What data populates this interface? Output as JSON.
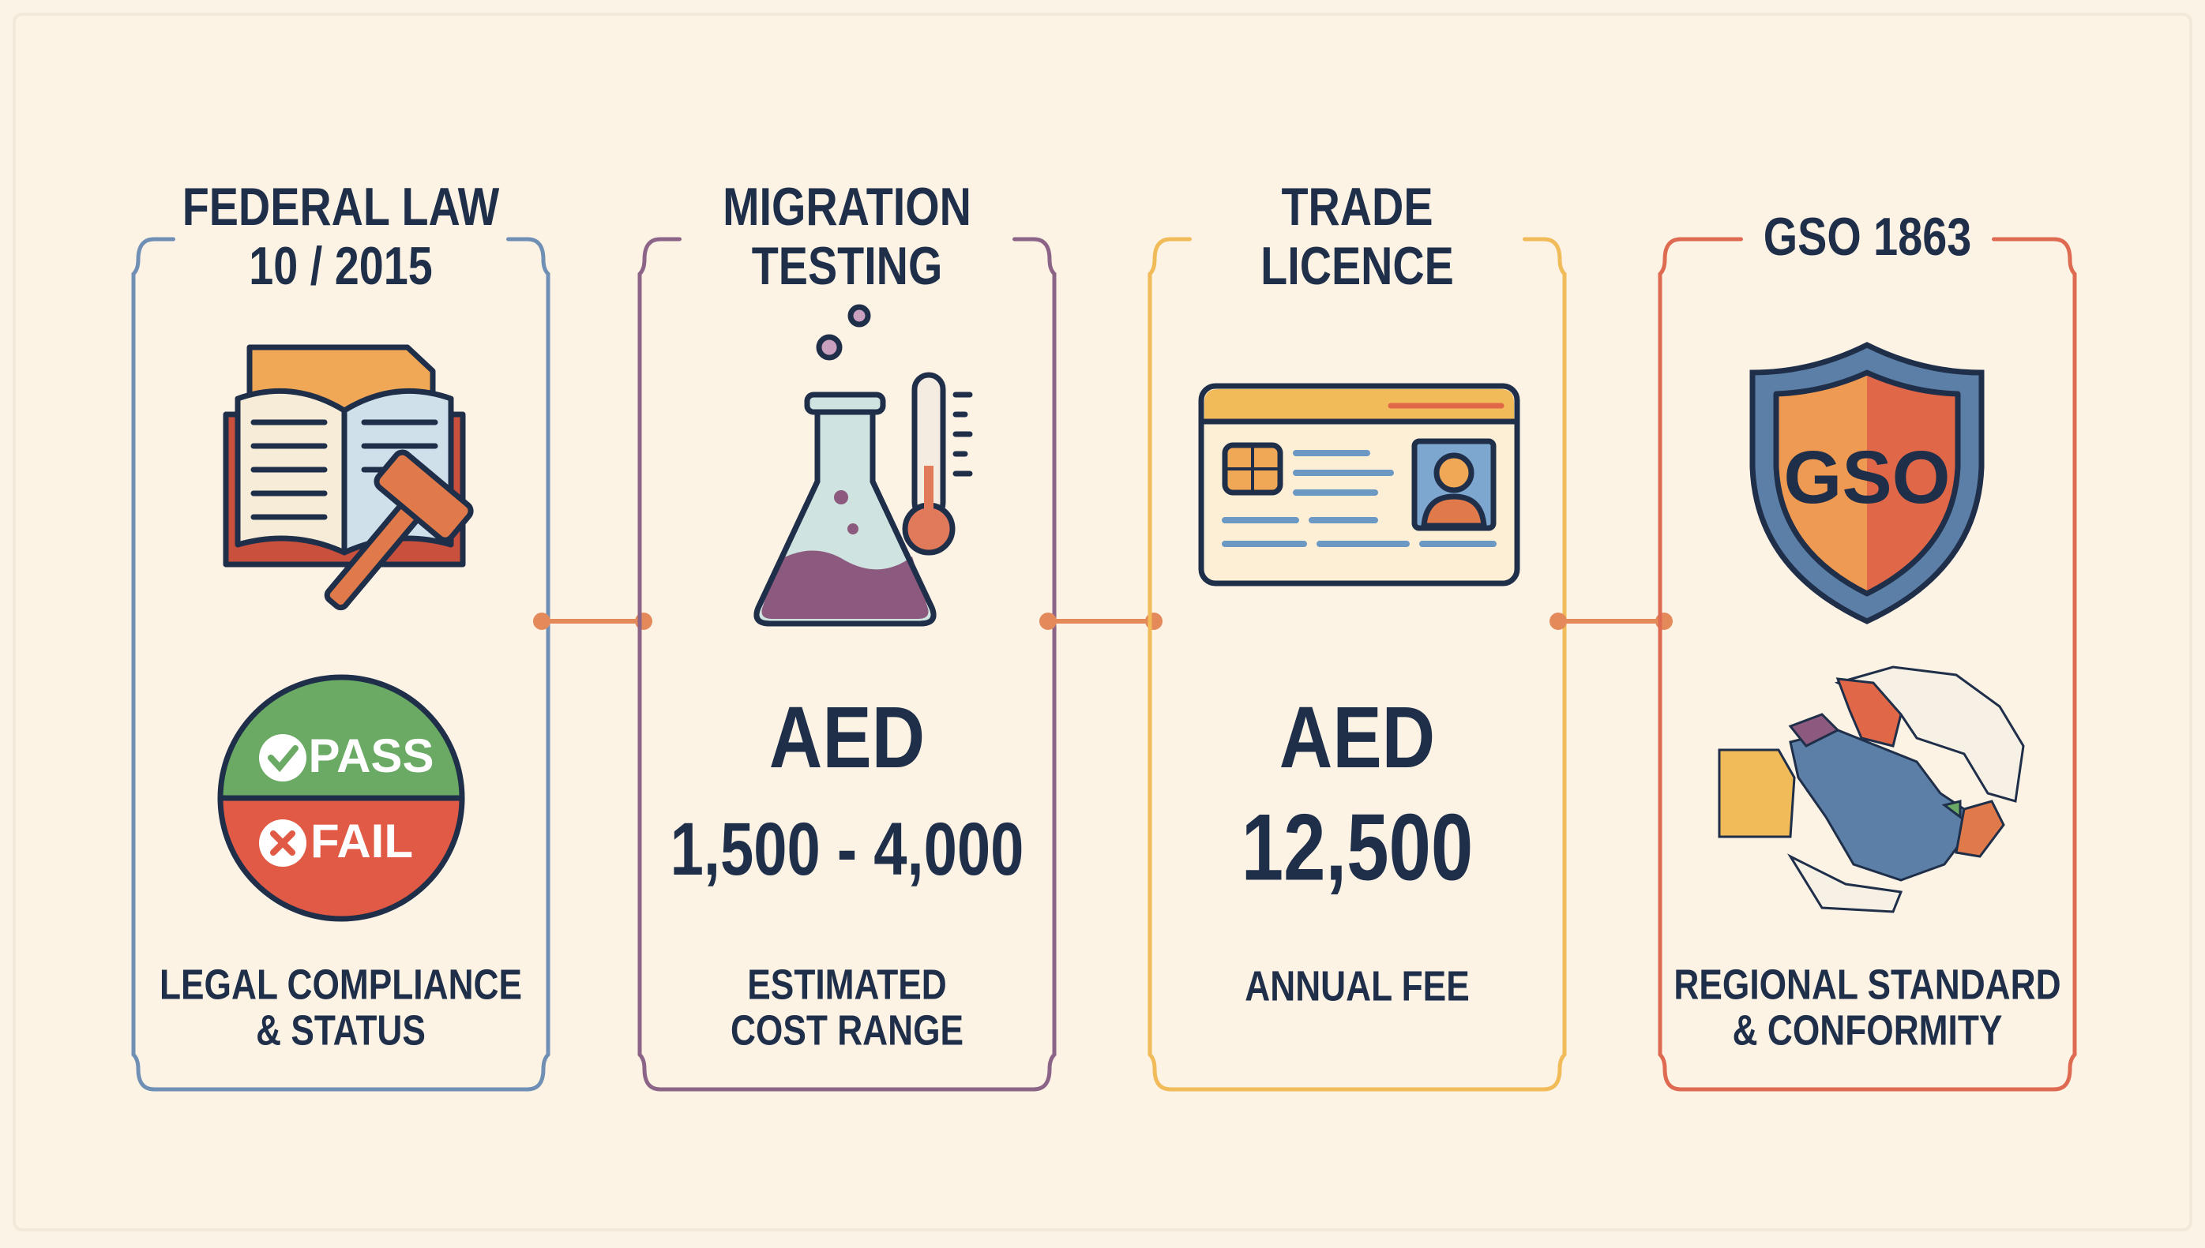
{
  "panels": [
    {
      "title": [
        "FEDERAL LAW",
        "10 / 2015"
      ],
      "badge_pass": "PASS",
      "badge_fail": "FAIL",
      "caption": [
        "LEGAL COMPLIANCE",
        "& STATUS"
      ]
    },
    {
      "title": [
        "MIGRATION",
        "TESTING"
      ],
      "amount_label": "AED",
      "amount": "1,500 - 4,000",
      "caption": [
        "ESTIMATED",
        "COST RANGE"
      ]
    },
    {
      "title": [
        "TRADE",
        "LICENCE"
      ],
      "amount_label": "AED",
      "amount": "12,500",
      "caption": [
        "ANNUAL FEE"
      ]
    },
    {
      "title": [
        "GSO 1863"
      ],
      "shield_label": "GSO",
      "caption": [
        "REGIONAL STANDARD",
        "& CONFORMITY"
      ]
    }
  ]
}
